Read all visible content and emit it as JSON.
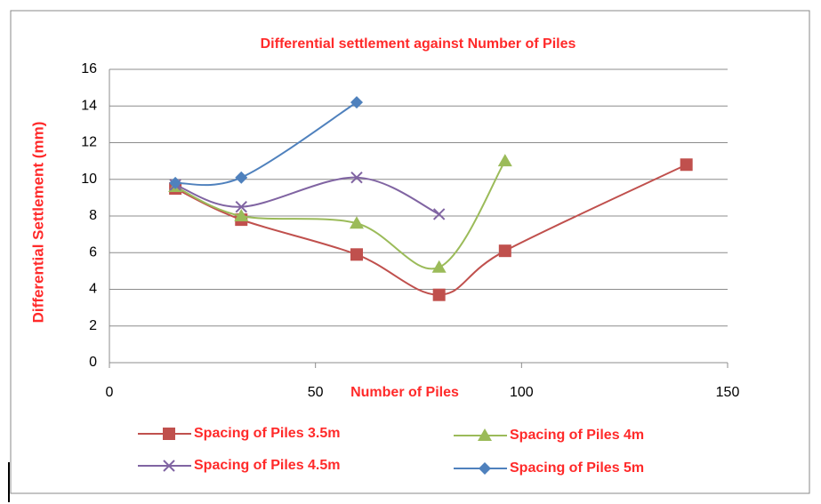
{
  "chart_data": {
    "type": "line",
    "smooth": true,
    "title": "Differential settlement against Number of Piles",
    "x_label": "Number of Piles",
    "y_label": "Differential Settlement (mm)",
    "xlim": [
      0,
      150
    ],
    "xticks": [
      0,
      50,
      100,
      150
    ],
    "ylim": [
      0,
      16
    ],
    "yticks": [
      0,
      2,
      4,
      6,
      8,
      10,
      12,
      14,
      16
    ],
    "grid": true,
    "series": [
      {
        "name": "Spacing of Piles 3.5m",
        "color": "#c0504d",
        "marker": "square",
        "x": [
          16,
          32,
          60,
          80,
          96,
          140
        ],
        "values": [
          9.5,
          7.8,
          5.9,
          3.7,
          6.1,
          10.8
        ]
      },
      {
        "name": "Spacing of Piles 4m",
        "color": "#9bbb59",
        "marker": "triangle",
        "x": [
          16,
          32,
          60,
          80,
          96
        ],
        "values": [
          9.6,
          8.0,
          7.6,
          5.2,
          11.0
        ]
      },
      {
        "name": "Spacing of Piles 4.5m",
        "color": "#8064a2",
        "marker": "x",
        "x": [
          16,
          32,
          60,
          80
        ],
        "values": [
          9.7,
          8.5,
          10.1,
          8.1
        ]
      },
      {
        "name": "Spacing of Piles 5m",
        "color": "#4f81bd",
        "marker": "diamond",
        "x": [
          16,
          32,
          60
        ],
        "values": [
          9.8,
          10.1,
          14.2
        ]
      }
    ]
  }
}
